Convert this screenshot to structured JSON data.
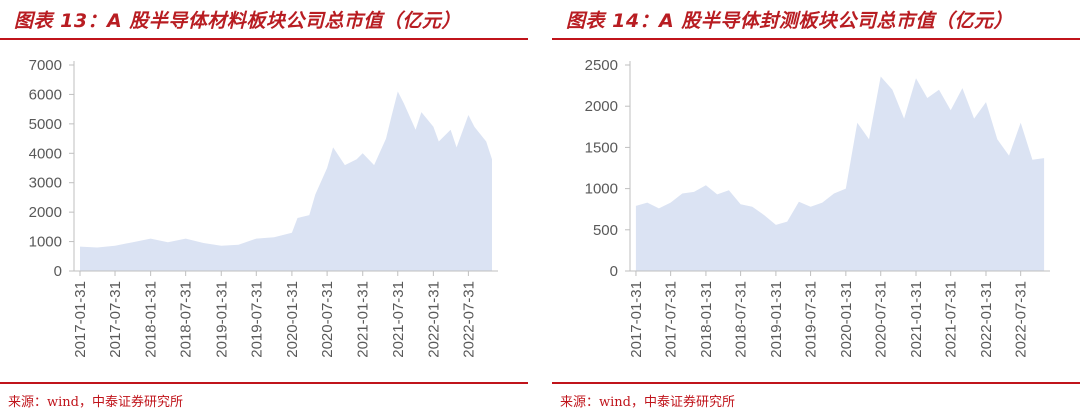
{
  "colors": {
    "title": "#b81d22",
    "rule": "#c0141b",
    "area": "#dbe3f3",
    "axis": "#bfbfbf",
    "text": "#595959"
  },
  "charts": [
    {
      "id": "fig13",
      "title": "图表 13：A 股半导体材料板块公司总市值（亿元）",
      "source": "来源：wind，中泰证券研究所",
      "chart_data": {
        "type": "area",
        "ylim": [
          0,
          7000
        ],
        "yticks": [
          "0",
          "1000",
          "2000",
          "3000",
          "4000",
          "5000",
          "6000",
          "7000"
        ],
        "xticks": [
          "2017-01-31",
          "2017-07-31",
          "2018-01-31",
          "2018-07-31",
          "2019-01-31",
          "2019-07-31",
          "2020-01-31",
          "2020-07-31",
          "2021-01-31",
          "2021-07-31",
          "2022-01-31",
          "2022-07-31"
        ],
        "x": [
          "2017-01-31",
          "2017-04-30",
          "2017-07-31",
          "2017-10-31",
          "2018-01-31",
          "2018-04-30",
          "2018-07-31",
          "2018-10-31",
          "2019-01-31",
          "2019-04-30",
          "2019-07-31",
          "2019-10-31",
          "2020-01-31",
          "2020-02-29",
          "2020-04-30",
          "2020-05-31",
          "2020-07-31",
          "2020-08-31",
          "2020-10-31",
          "2020-12-31",
          "2021-01-31",
          "2021-03-31",
          "2021-05-31",
          "2021-06-30",
          "2021-07-31",
          "2021-08-31",
          "2021-10-31",
          "2021-11-30",
          "2022-01-31",
          "2022-02-28",
          "2022-04-30",
          "2022-05-31",
          "2022-07-31",
          "2022-08-31",
          "2022-10-31",
          "2022-11-30"
        ],
        "values": [
          830,
          800,
          860,
          980,
          1100,
          980,
          1100,
          950,
          860,
          890,
          1100,
          1150,
          1300,
          1800,
          1900,
          2600,
          3500,
          4200,
          3600,
          3800,
          4000,
          3600,
          4500,
          5300,
          6100,
          5700,
          4800,
          5400,
          4900,
          4400,
          4800,
          4200,
          5300,
          4900,
          4400,
          3800
        ]
      }
    },
    {
      "id": "fig14",
      "title": "图表 14：A 股半导体封测板块公司总市值（亿元）",
      "source": "来源：wind，中泰证券研究所",
      "chart_data": {
        "type": "area",
        "ylim": [
          0,
          2500
        ],
        "yticks": [
          "0",
          "500",
          "1000",
          "1500",
          "2000",
          "2500"
        ],
        "xticks": [
          "2017-01-31",
          "2017-07-31",
          "2018-01-31",
          "2018-07-31",
          "2019-01-31",
          "2019-07-31",
          "2020-01-31",
          "2020-07-31",
          "2021-01-31",
          "2021-07-31",
          "2022-01-31",
          "2022-07-31"
        ],
        "x": [
          "2017-01-31",
          "2017-03-31",
          "2017-05-31",
          "2017-07-31",
          "2017-09-30",
          "2017-11-30",
          "2018-01-31",
          "2018-03-31",
          "2018-05-31",
          "2018-07-31",
          "2018-09-30",
          "2018-11-30",
          "2019-01-31",
          "2019-03-31",
          "2019-05-31",
          "2019-07-31",
          "2019-09-30",
          "2019-11-30",
          "2020-01-31",
          "2020-03-31",
          "2020-05-31",
          "2020-07-31",
          "2020-09-30",
          "2020-11-30",
          "2021-01-31",
          "2021-03-31",
          "2021-05-31",
          "2021-07-31",
          "2021-09-30",
          "2021-11-30",
          "2022-01-31",
          "2022-03-31",
          "2022-05-31",
          "2022-07-31",
          "2022-09-30",
          "2022-11-30"
        ],
        "values": [
          790,
          830,
          760,
          830,
          940,
          960,
          1040,
          930,
          980,
          810,
          780,
          680,
          560,
          600,
          840,
          780,
          830,
          940,
          1000,
          1800,
          1600,
          2360,
          2200,
          1850,
          2340,
          2100,
          2200,
          1950,
          2220,
          1850,
          2050,
          1600,
          1400,
          1800,
          1350,
          1370
        ]
      }
    }
  ]
}
